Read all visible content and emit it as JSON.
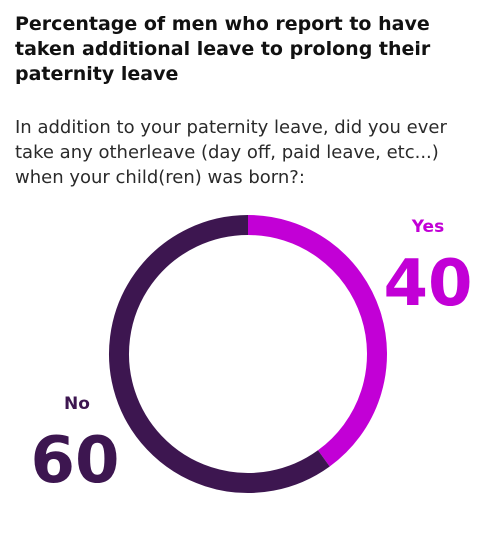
{
  "header": {
    "title": "Percentage of men who report to have taken additional leave to prolong their paternity leave",
    "subtitle": "In addition to your paternity leave, did you ever take any otherleave (day off, paid leave, etc...) when your child(ren) was born?:"
  },
  "colors": {
    "yes": "#c200d6",
    "no": "#3d1650"
  },
  "chart_data": {
    "type": "pie",
    "title": "Percentage of men who report to have taken additional leave to prolong their paternity leave",
    "categories": [
      "Yes",
      "No"
    ],
    "values": [
      40,
      60
    ],
    "value_labels": [
      "40",
      "60"
    ],
    "style": "donut"
  }
}
